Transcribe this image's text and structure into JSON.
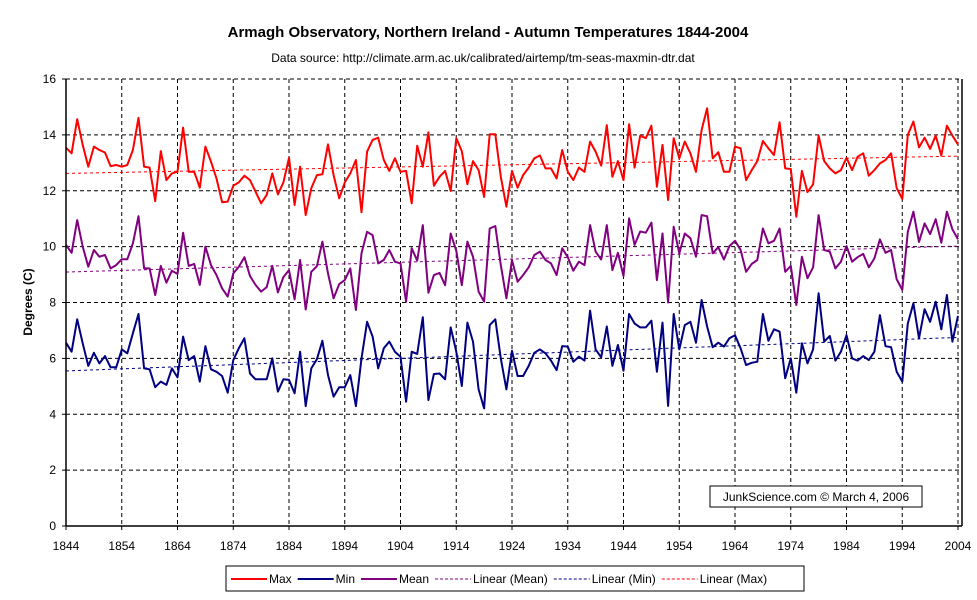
{
  "chart_data": {
    "type": "line",
    "title": "Armagh Observatory, Northern Ireland - Autumn Temperatures 1844-2004",
    "subtitle": "Data source: http://climate.arm.ac.uk/calibrated/airtemp/tm-seas-maxmin-dtr.dat",
    "xlabel": "",
    "ylabel": "Degrees (C)",
    "xlim": [
      1844,
      2004
    ],
    "ylim": [
      0,
      16
    ],
    "x_start": 1844,
    "x_end": 2004,
    "xticks": [
      "1844",
      "1854",
      "1864",
      "1874",
      "1884",
      "1894",
      "1904",
      "1914",
      "1924",
      "1934",
      "1944",
      "1954",
      "1964",
      "1974",
      "1984",
      "1994",
      "2004"
    ],
    "yticks": [
      "0",
      "2",
      "4",
      "6",
      "8",
      "10",
      "12",
      "14",
      "16"
    ],
    "grid": true,
    "legend_position": "bottom",
    "annotation": "JunkScience.com © March 4, 2006",
    "series": [
      {
        "name": "Max",
        "color": "#ff0000",
        "style": "solid",
        "values": [
          13.54,
          13.34,
          14.56,
          13.64,
          12.86,
          13.58,
          13.46,
          13.37,
          12.88,
          12.92,
          12.86,
          12.92,
          13.46,
          14.61,
          12.86,
          12.83,
          11.63,
          13.42,
          12.38,
          12.62,
          12.68,
          14.26,
          12.68,
          12.68,
          12.11,
          13.58,
          13.04,
          12.44,
          11.59,
          11.61,
          12.18,
          12.3,
          12.54,
          12.38,
          11.97,
          11.55,
          11.85,
          12.62,
          11.87,
          12.3,
          13.18,
          11.49,
          12.86,
          11.13,
          12.09,
          12.56,
          12.59,
          13.66,
          12.56,
          11.73,
          12.3,
          12.62,
          13.1,
          11.23,
          13.4,
          13.82,
          13.9,
          13.1,
          12.71,
          13.16,
          12.68,
          12.71,
          11.55,
          13.61,
          12.86,
          14.09,
          12.18,
          12.5,
          12.71,
          11.99,
          13.88,
          13.42,
          12.23,
          13.06,
          12.74,
          11.78,
          14.02,
          14.02,
          12.5,
          11.43,
          12.71,
          12.11,
          12.56,
          12.83,
          13.16,
          13.26,
          12.8,
          12.8,
          12.44,
          13.46,
          12.68,
          12.38,
          12.83,
          12.68,
          13.76,
          13.4,
          12.9,
          14.35,
          12.5,
          13.06,
          12.38,
          14.38,
          12.83,
          13.97,
          13.88,
          14.33,
          12.14,
          13.64,
          11.67,
          13.88,
          13.16,
          13.76,
          13.34,
          12.68,
          14.17,
          14.95,
          13.16,
          13.38,
          12.68,
          12.68,
          13.58,
          13.52,
          12.38,
          12.74,
          13.06,
          13.78,
          13.52,
          13.28,
          14.45,
          12.8,
          12.78,
          11.07,
          12.71,
          11.95,
          12.23,
          13.97,
          13.06,
          12.8,
          12.62,
          12.74,
          13.18,
          12.74,
          13.22,
          13.34,
          12.54,
          12.74,
          12.98,
          13.1,
          13.34,
          12.09,
          11.71,
          14.0,
          14.48,
          13.55,
          13.9,
          13.5,
          13.97,
          13.26,
          14.33,
          13.97,
          13.66
        ]
      },
      {
        "name": "Min",
        "color": "#000080",
        "style": "solid",
        "values": [
          6.56,
          6.24,
          7.4,
          6.54,
          5.73,
          6.2,
          5.82,
          6.08,
          5.68,
          5.68,
          6.32,
          6.18,
          6.9,
          7.59,
          5.64,
          5.61,
          4.97,
          5.17,
          5.05,
          5.64,
          5.32,
          6.78,
          5.94,
          6.08,
          5.17,
          6.44,
          5.61,
          5.52,
          5.37,
          4.77,
          5.94,
          6.36,
          6.72,
          5.46,
          5.25,
          5.25,
          5.25,
          6.0,
          4.81,
          5.25,
          5.23,
          4.75,
          6.24,
          4.29,
          5.64,
          5.97,
          6.63,
          5.4,
          4.63,
          4.97,
          4.97,
          5.4,
          4.29,
          6.0,
          7.31,
          6.78,
          5.64,
          6.36,
          6.6,
          6.24,
          6.06,
          4.45,
          6.24,
          6.16,
          7.47,
          4.51,
          5.44,
          5.46,
          5.25,
          7.11,
          6.24,
          5.01,
          7.28,
          6.6,
          4.89,
          4.21,
          7.19,
          7.4,
          6.0,
          4.89,
          6.27,
          5.37,
          5.37,
          5.73,
          6.2,
          6.32,
          6.18,
          5.92,
          5.58,
          6.44,
          6.42,
          5.88,
          6.06,
          5.92,
          7.71,
          6.32,
          6.04,
          7.14,
          5.73,
          6.48,
          5.56,
          7.59,
          7.25,
          7.11,
          7.11,
          7.35,
          5.52,
          7.28,
          4.3,
          7.59,
          6.32,
          7.19,
          7.31,
          6.56,
          8.09,
          7.14,
          6.4,
          6.56,
          6.42,
          6.72,
          6.83,
          6.36,
          5.76,
          5.84,
          5.88,
          7.59,
          6.63,
          7.04,
          6.96,
          5.29,
          6.0,
          4.77,
          6.54,
          5.82,
          6.32,
          8.33,
          6.6,
          6.8,
          5.92,
          6.24,
          6.83,
          6.0,
          5.92,
          6.08,
          5.94,
          6.24,
          7.55,
          6.44,
          6.4,
          5.52,
          5.17,
          7.25,
          7.97,
          6.72,
          7.76,
          7.31,
          8.03,
          7.04,
          8.27,
          6.6,
          7.52
        ]
      },
      {
        "name": "Mean",
        "color": "#800080",
        "style": "solid",
        "values": [
          10.06,
          9.78,
          10.95,
          10.0,
          9.28,
          9.88,
          9.64,
          9.7,
          9.22,
          9.34,
          9.55,
          9.55,
          10.12,
          11.09,
          9.22,
          9.22,
          8.27,
          9.31,
          8.71,
          9.14,
          9.02,
          10.5,
          9.31,
          9.38,
          8.63,
          10.0,
          9.34,
          8.98,
          8.51,
          8.21,
          9.04,
          9.28,
          9.62,
          8.95,
          8.63,
          8.39,
          8.55,
          9.31,
          8.36,
          8.91,
          9.16,
          8.11,
          9.52,
          7.75,
          9.1,
          9.3,
          10.18,
          9.04,
          8.15,
          8.66,
          8.8,
          9.22,
          7.73,
          9.76,
          10.53,
          10.41,
          9.4,
          9.52,
          9.88,
          9.46,
          9.4,
          8.03,
          9.94,
          9.5,
          10.77,
          8.35,
          8.98,
          9.06,
          8.62,
          10.47,
          9.85,
          8.62,
          10.18,
          9.64,
          8.39,
          8.03,
          10.65,
          10.74,
          9.34,
          8.15,
          9.52,
          8.74,
          8.98,
          9.26,
          9.7,
          9.82,
          9.52,
          9.4,
          8.98,
          9.94,
          9.62,
          9.14,
          9.46,
          9.34,
          10.77,
          9.82,
          9.54,
          10.77,
          9.16,
          9.78,
          8.95,
          11.01,
          10.06,
          10.54,
          10.5,
          10.86,
          8.8,
          10.47,
          8.0,
          10.71,
          9.76,
          10.47,
          10.3,
          9.64,
          11.13,
          11.09,
          9.76,
          9.98,
          9.54,
          10.02,
          10.21,
          9.88,
          9.1,
          9.38,
          9.52,
          10.65,
          10.12,
          10.21,
          10.65,
          9.1,
          9.31,
          7.91,
          9.64,
          8.87,
          9.26,
          11.13,
          9.88,
          9.82,
          9.22,
          9.46,
          10.02,
          9.46,
          9.62,
          9.74,
          9.26,
          9.58,
          10.26,
          9.78,
          9.88,
          8.83,
          8.45,
          10.53,
          11.25,
          10.17,
          10.83,
          10.45,
          10.98,
          10.14,
          11.25,
          10.62,
          10.26
        ]
      },
      {
        "name": "Linear (Mean)",
        "color": "#800080",
        "style": "dashed",
        "trend": [
          9.09,
          10.02
        ]
      },
      {
        "name": "Linear (Min)",
        "color": "#000080",
        "style": "dashed",
        "trend": [
          5.55,
          6.75
        ]
      },
      {
        "name": "Linear (Max)",
        "color": "#ff0000",
        "style": "dashed",
        "trend": [
          12.62,
          13.24
        ]
      }
    ]
  }
}
